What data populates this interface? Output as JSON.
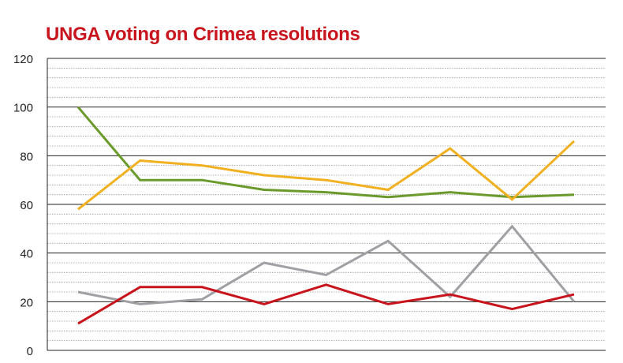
{
  "chart_data": {
    "type": "line",
    "title": "UNGA voting on Crimea resolutions",
    "xlabel": "",
    "ylabel": "",
    "ylim": [
      0,
      120
    ],
    "y_ticks": [
      "0",
      "20",
      "40",
      "60",
      "80",
      "100",
      "120"
    ],
    "grid": true,
    "x": [
      1,
      2,
      3,
      4,
      5,
      6,
      7,
      8,
      9
    ],
    "series": [
      {
        "color": "#6b9a2c",
        "values": [
          100,
          70,
          70,
          66,
          65,
          63,
          65,
          63,
          64
        ]
      },
      {
        "color": "#f0b01f",
        "values": [
          58,
          78,
          76,
          72,
          70,
          66,
          83,
          62,
          86
        ]
      },
      {
        "color": "#a0a0a4",
        "values": [
          24,
          19,
          21,
          36,
          31,
          45,
          22,
          51,
          20
        ]
      },
      {
        "color": "#c8141c",
        "values": [
          11,
          26,
          26,
          19,
          27,
          19,
          23,
          17,
          23
        ]
      }
    ]
  }
}
